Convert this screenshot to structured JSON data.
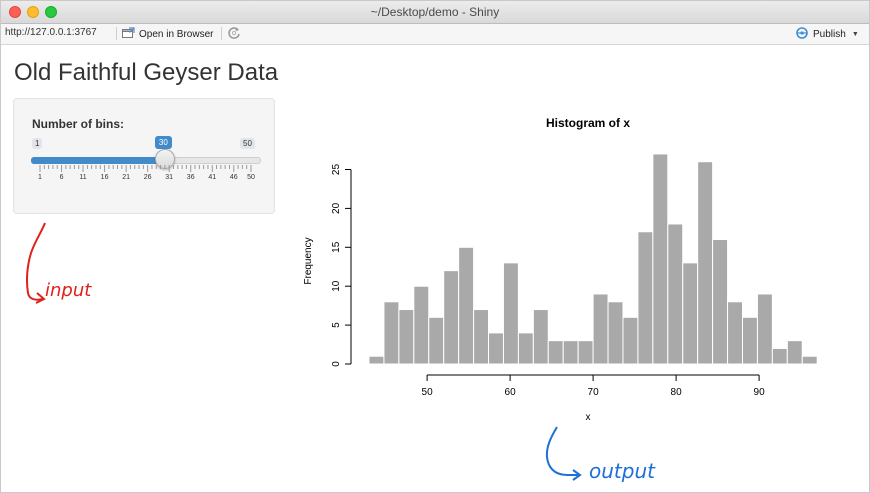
{
  "window": {
    "title": "~/Desktop/demo - Shiny"
  },
  "toolbar": {
    "url": "http://127.0.0.1:3767",
    "open_in_browser": "Open in Browser",
    "publish": "Publish"
  },
  "page": {
    "title": "Old Faithful Geyser Data"
  },
  "slider": {
    "label": "Number of bins:",
    "min": 1,
    "max": 50,
    "value": 30,
    "min_label": "1",
    "max_label": "50",
    "value_label": "30",
    "ticks": [
      "1",
      "6",
      "11",
      "16",
      "21",
      "26",
      "31",
      "36",
      "41",
      "46",
      "50"
    ]
  },
  "annotations": {
    "input": "input",
    "output": "output"
  },
  "colors": {
    "accent": "#428bca",
    "bar": "#a9a9a9",
    "input_ink": "#e0211b",
    "output_ink": "#1f6fd8"
  },
  "icons": [
    "open-in-browser-icon",
    "refresh-icon",
    "publish-icon"
  ],
  "chart_data": {
    "type": "bar",
    "title": "Histogram of x",
    "xlabel": "x",
    "ylabel": "Frequency",
    "bin_start": 43,
    "bin_width": 1.8,
    "values": [
      1,
      8,
      7,
      10,
      6,
      12,
      15,
      7,
      4,
      13,
      4,
      7,
      3,
      3,
      3,
      9,
      8,
      6,
      17,
      27,
      18,
      13,
      26,
      16,
      8,
      6,
      9,
      2,
      3,
      1
    ],
    "xticks": [
      50,
      60,
      70,
      80,
      90
    ],
    "xtick_labels": [
      "50",
      "60",
      "70",
      "80",
      "90"
    ],
    "yticks": [
      0,
      5,
      10,
      15,
      20,
      25
    ],
    "ytick_labels": [
      "0",
      "5",
      "10",
      "15",
      "20",
      "25"
    ],
    "xlim": [
      43,
      97
    ],
    "ylim": [
      0,
      25
    ]
  }
}
